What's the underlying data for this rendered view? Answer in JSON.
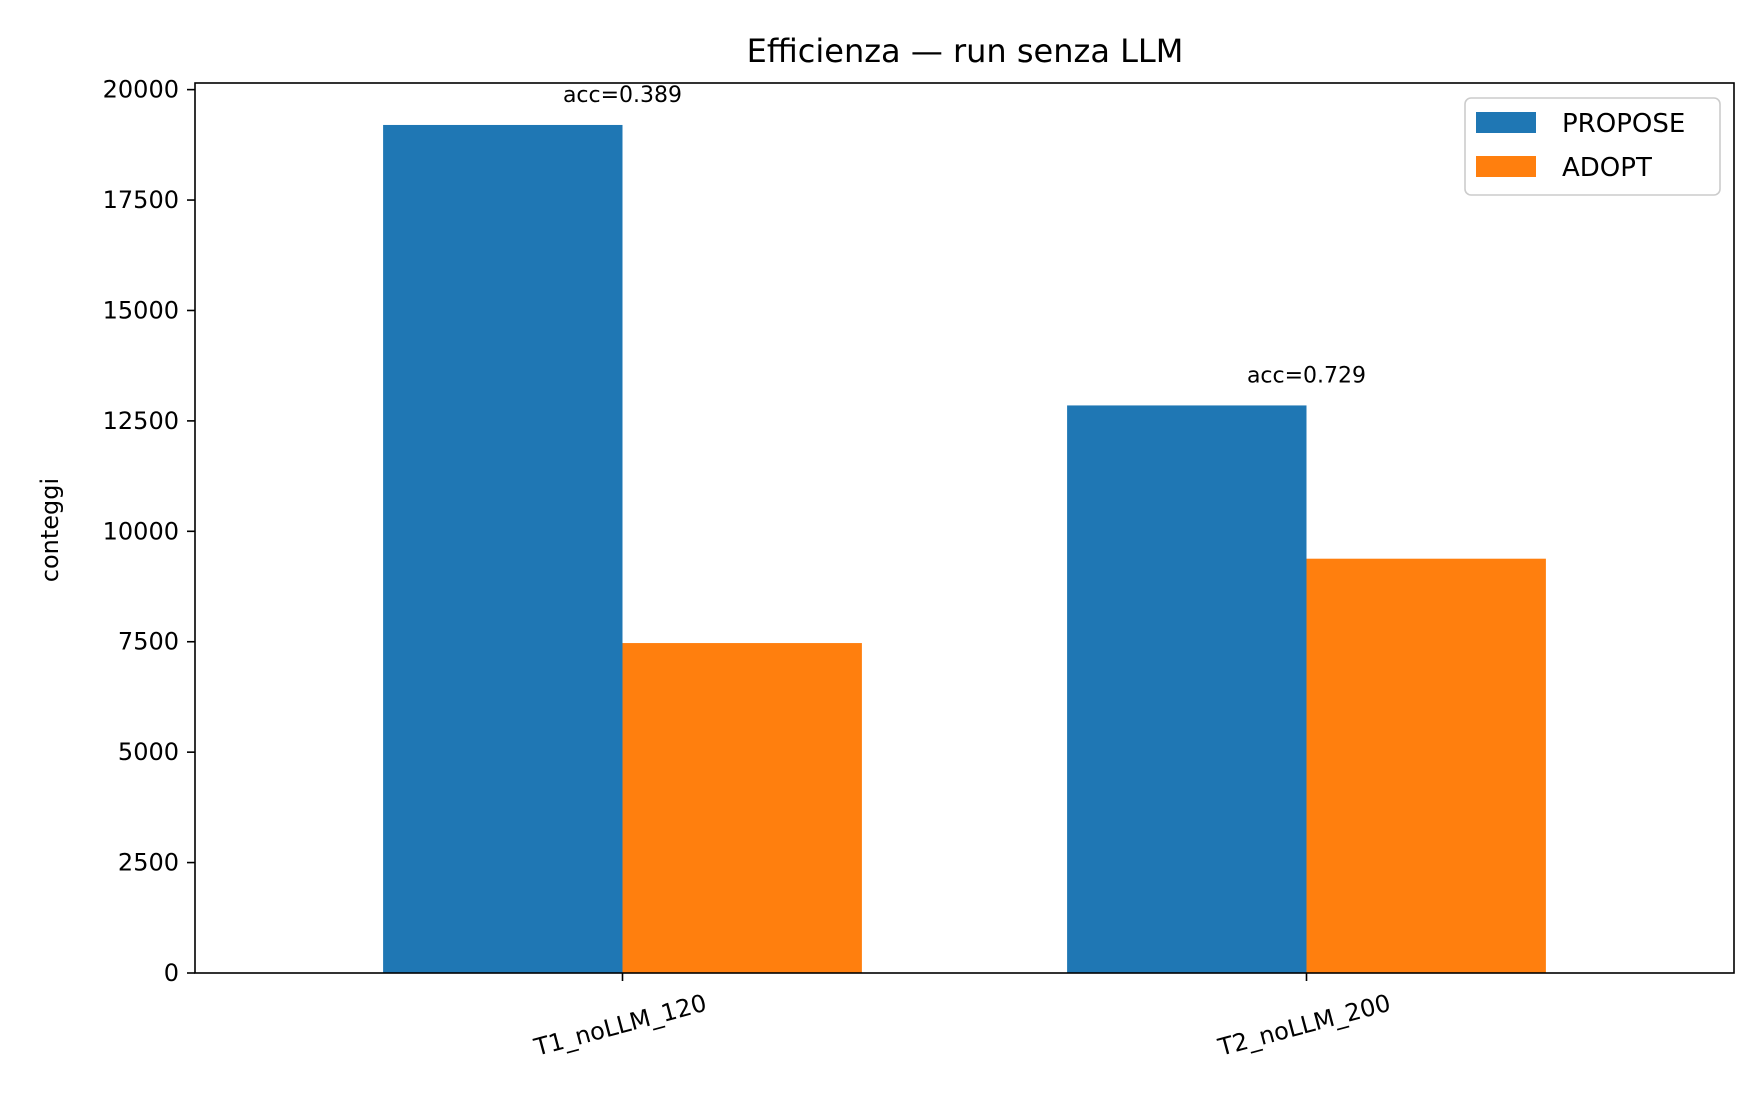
{
  "chart_data": {
    "type": "bar",
    "title": "Efficienza — run senza LLM",
    "xlabel": "",
    "ylabel": "conteggi",
    "categories": [
      "T1_noLLM_120",
      "T2_noLLM_200"
    ],
    "series": [
      {
        "name": "PROPOSE",
        "values": [
          19200,
          12850
        ],
        "color": "#1f77b4"
      },
      {
        "name": "ADOPT",
        "values": [
          7470,
          9380
        ],
        "color": "#ff7f0e"
      }
    ],
    "annotations": [
      "acc=0.389",
      "acc=0.729"
    ],
    "ylim": [
      0,
      20150
    ],
    "yticks": [
      0,
      2500,
      5000,
      7500,
      10000,
      12500,
      15000,
      17500,
      20000
    ],
    "ytick_labels": [
      "0",
      "2500",
      "5000",
      "7500",
      "10000",
      "12500",
      "15000",
      "17500",
      "20000"
    ],
    "grid": false,
    "legend_position": "top-right"
  }
}
